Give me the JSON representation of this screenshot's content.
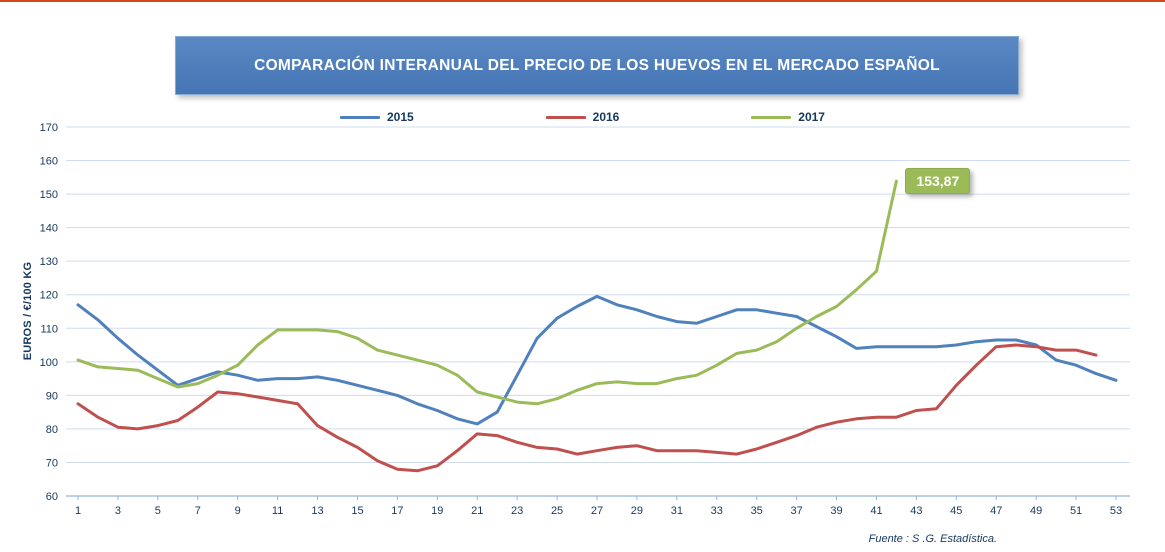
{
  "page": {
    "top_rule_color": "#d2491c",
    "source": "Fuente :  S .G. Estadística."
  },
  "chart_data": {
    "type": "line",
    "title": "COMPARACIÓN INTERANUAL DEL PRECIO DE LOS HUEVOS EN EL MERCADO ESPAÑOL",
    "ylabel": "EUROS / €/100 KG",
    "xlabel": "",
    "ylim": [
      60,
      170
    ],
    "ytick_step": 10,
    "grid": true,
    "legend_position": "top",
    "x_ticks": [
      1,
      3,
      5,
      7,
      9,
      11,
      13,
      15,
      17,
      19,
      21,
      23,
      25,
      27,
      29,
      31,
      33,
      35,
      37,
      39,
      41,
      43,
      45,
      47,
      49,
      51,
      53
    ],
    "x_unit": "week",
    "series": [
      {
        "name": "2015",
        "color": "#4F81BD",
        "values": [
          117,
          112.5,
          107,
          102,
          97.5,
          93,
          95,
          97,
          96,
          94.5,
          95,
          95,
          95.5,
          94.5,
          93,
          91.5,
          90,
          87.5,
          85.5,
          83,
          81.5,
          85,
          96,
          107,
          113,
          116.5,
          119.5,
          117,
          115.5,
          113.5,
          112,
          111.5,
          113.5,
          115.5,
          115.5,
          114.5,
          113.5,
          110.5,
          107.5,
          104,
          104.5,
          104.5,
          104.5,
          104.5,
          105,
          106,
          106.5,
          106.5,
          105,
          100.5,
          99,
          96.5,
          94.5
        ]
      },
      {
        "name": "2016",
        "color": "#C0504D",
        "values": [
          87.5,
          83.5,
          80.5,
          80,
          81,
          82.5,
          86.5,
          91,
          90.5,
          89.5,
          88.5,
          87.5,
          81,
          77.5,
          74.5,
          70.5,
          68,
          67.5,
          69,
          73.5,
          78.5,
          78,
          76,
          74.5,
          74,
          72.5,
          73.5,
          74.5,
          75,
          73.5,
          73.5,
          73.5,
          73,
          72.5,
          74,
          76,
          78,
          80.5,
          82,
          83,
          83.5,
          83.5,
          85.5,
          86,
          93,
          99,
          104.5,
          105,
          104.5,
          103.5,
          103.5,
          102
        ]
      },
      {
        "name": "2017",
        "color": "#9BBB59",
        "values": [
          100.5,
          98.5,
          98,
          97.5,
          95,
          92.5,
          93.5,
          96,
          99,
          105,
          109.5,
          109.5,
          109.5,
          109,
          107,
          103.5,
          102,
          100.5,
          99,
          96,
          91,
          89.5,
          88,
          87.5,
          89,
          91.5,
          93.5,
          94,
          93.5,
          93.5,
          95,
          96,
          99,
          102.5,
          103.5,
          106,
          110,
          113.5,
          116.5,
          121.5,
          127,
          153.87
        ]
      }
    ],
    "annotation": {
      "text": "153,87",
      "series": "2017",
      "week": 42,
      "value": 153.87,
      "color": "#9BBB59"
    }
  }
}
